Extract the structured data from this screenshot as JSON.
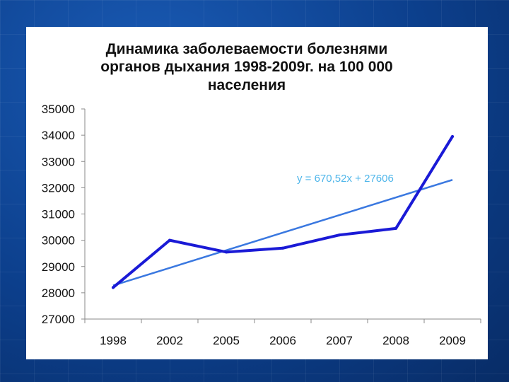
{
  "chart_data": {
    "type": "line",
    "title_lines": [
      "Динамика заболеваемости болезнями",
      "органов дыхания 1998-2009г. на 100 000",
      "населения"
    ],
    "categories": [
      "1998",
      "2002",
      "2005",
      "2006",
      "2007",
      "2008",
      "2009"
    ],
    "series": [
      {
        "values": [
          28200,
          30000,
          29550,
          29700,
          30200,
          30450,
          33950
        ],
        "color": "#1a1ad6"
      }
    ],
    "trendline": {
      "equation": "y = 670,52x + 27606",
      "slope": 670.52,
      "intercept": 27606,
      "color": "#3a78e0",
      "label_color": "#4fb6ea"
    },
    "ylim": [
      27000,
      35000
    ],
    "yticks": [
      27000,
      28000,
      29000,
      30000,
      31000,
      32000,
      33000,
      34000,
      35000
    ],
    "grid": false,
    "legend": "none"
  }
}
